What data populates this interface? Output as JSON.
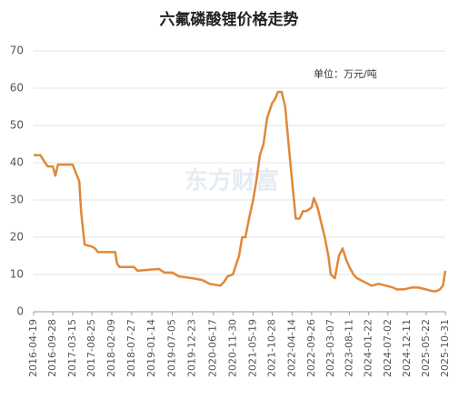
{
  "chart_data": {
    "type": "line",
    "title": "六氟磷酸锂价格走势",
    "annotation": "单位：万元/吨",
    "watermark": "东方财富",
    "color": "#e0883a",
    "grid": true,
    "x": [
      "2016-04-19",
      "2016-06-15",
      "2016-07-15",
      "2016-08-15",
      "2016-09-28",
      "2016-10-20",
      "2016-11-10",
      "2017-03-15",
      "2017-05-10",
      "2017-05-25",
      "2017-06-10",
      "2017-06-25",
      "2017-08-25",
      "2017-09-20",
      "2017-10-15",
      "2018-03-10",
      "2018-03-25",
      "2018-04-15",
      "2018-08-15",
      "2018-09-15",
      "2019-03-15",
      "2019-05-01",
      "2019-07-05",
      "2019-09-01",
      "2019-12-23",
      "2020-03-15",
      "2020-05-15",
      "2020-08-15",
      "2020-09-15",
      "2020-10-15",
      "2020-11-30",
      "2020-12-20",
      "2021-01-20",
      "2021-02-15",
      "2021-03-15",
      "2021-04-15",
      "2021-05-19",
      "2021-06-15",
      "2021-07-15",
      "2021-08-15",
      "2021-09-15",
      "2021-10-28",
      "2021-11-20",
      "2021-12-15",
      "2022-01-15",
      "2022-02-15",
      "2022-03-15",
      "2022-04-14",
      "2022-05-15",
      "2022-06-15",
      "2022-07-15",
      "2022-08-15",
      "2022-09-26",
      "2022-10-15",
      "2022-11-15",
      "2022-12-15",
      "2023-01-15",
      "2023-02-15",
      "2023-03-07",
      "2023-04-10",
      "2023-05-15",
      "2023-06-15",
      "2023-07-15",
      "2023-08-11",
      "2023-09-15",
      "2023-10-15",
      "2023-12-15",
      "2024-02-15",
      "2024-04-15",
      "2024-06-15",
      "2024-08-15",
      "2024-09-15",
      "2024-11-15",
      "2025-01-15",
      "2025-03-15",
      "2025-05-22",
      "2025-07-15",
      "2025-08-15",
      "2025-09-15",
      "2025-10-10",
      "2025-10-31"
    ],
    "values": [
      42,
      42,
      40.5,
      39,
      39,
      36.5,
      39.5,
      39.5,
      35,
      27,
      22,
      18,
      17.5,
      17,
      16,
      16,
      13,
      12,
      12,
      11,
      11.5,
      10.5,
      10.5,
      9.5,
      9,
      8.5,
      7.5,
      7,
      8,
      9.5,
      10,
      12,
      15,
      20,
      20,
      25,
      30,
      35,
      42,
      45,
      52,
      56,
      57,
      59,
      59,
      55,
      45,
      35,
      25,
      25,
      27,
      27,
      28,
      30.5,
      28,
      24,
      20,
      15,
      10,
      9,
      15,
      17,
      14,
      12,
      10,
      9,
      8,
      7,
      7.5,
      7,
      6.5,
      6,
      6,
      6.5,
      6.5,
      6,
      5.5,
      5.5,
      6,
      7,
      11
    ],
    "xlim": [
      "2016-04-19",
      "2025-10-31"
    ],
    "xticks": [
      "2016-04-19",
      "2016-09-28",
      "2017-03-15",
      "2017-08-25",
      "2018-02-09",
      "2018-07-27",
      "2019-01-14",
      "2019-07-05",
      "2019-12-23",
      "2020-06-17",
      "2020-11-30",
      "2021-05-19",
      "2021-10-28",
      "2022-04-14",
      "2022-09-26",
      "2023-03-07",
      "2023-08-11",
      "2024-01-22",
      "2024-07-02",
      "2024-12-11",
      "2025-05-22",
      "2025-10-31"
    ],
    "ylim": [
      0,
      70
    ],
    "yticks": [
      0,
      10,
      20,
      30,
      40,
      50,
      60,
      70
    ]
  }
}
